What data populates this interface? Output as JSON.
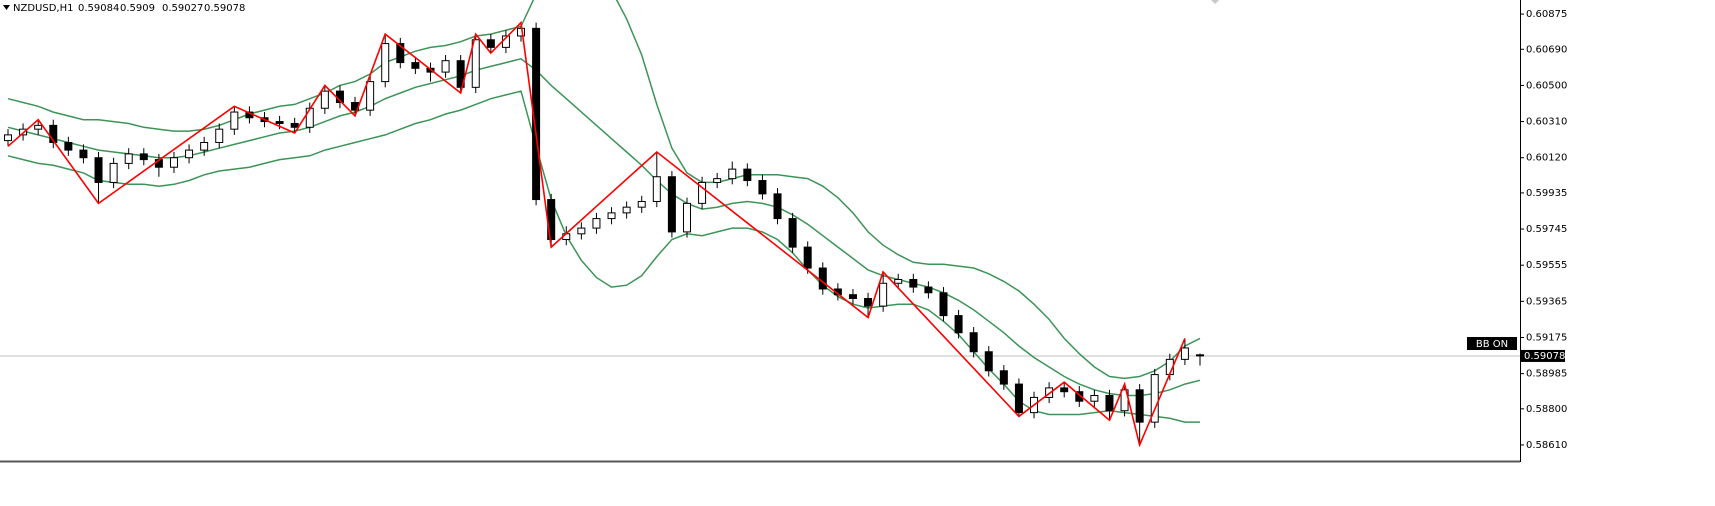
{
  "chart_data": {
    "type": "candlestick",
    "title": "NZDUSD,H1",
    "indicator_label": "BB ON",
    "ylim": [
      0.58531,
      0.60949
    ],
    "yticks": [
      0.60875,
      {
        "value": 0.6069,
        "label": "0.60690"
      },
      {
        "value": 0.605,
        "label": "0.60500"
      },
      {
        "value": 0.6031,
        "label": "0.60310"
      },
      {
        "value": 0.6012,
        "label": "0.60120"
      },
      0.59935,
      0.59745,
      0.59555,
      0.59365,
      0.59175,
      0.58985,
      {
        "value": 0.588,
        "label": "0.58800"
      },
      {
        "value": 0.5861,
        "label": "0.58610"
      }
    ],
    "up_color": "#ffffff",
    "down_color": "#000000",
    "open": [
      0.6021,
      0.6024,
      0.6027,
      0.6029,
      0.602,
      0.6016,
      0.6012,
      0.5999,
      0.6009,
      0.6014,
      0.6011,
      0.6007,
      0.6012,
      0.6016,
      0.602,
      0.6027,
      0.6036,
      0.6033,
      0.6031,
      0.603,
      0.6028,
      0.6038,
      0.6047,
      0.6041,
      0.6037,
      0.6052,
      0.6072,
      0.6062,
      0.6059,
      0.6057,
      0.6063,
      0.6049,
      0.6074,
      0.607,
      0.6076,
      0.608,
      0.599,
      0.5969,
      0.5972,
      0.5975,
      0.598,
      0.5983,
      0.5986,
      0.5989,
      0.6002,
      0.5973,
      0.5988,
      0.5999,
      0.6001,
      0.6006,
      0.6,
      0.5993,
      0.598,
      0.5965,
      0.5954,
      0.5943,
      0.594,
      0.5938,
      0.5934,
      0.5946,
      0.5948,
      0.5944,
      0.5941,
      0.5929,
      0.592,
      0.591,
      0.59,
      0.5893,
      0.5878,
      0.5886,
      0.5891,
      0.5889,
      0.5884,
      0.5887,
      0.5879,
      0.589,
      0.5873,
      0.5898,
      0.5906,
      0.59084
    ],
    "high": [
      0.6027,
      0.603,
      0.6032,
      0.6032,
      0.6023,
      0.6019,
      0.6015,
      0.6012,
      0.6017,
      0.6017,
      0.6014,
      0.6015,
      0.6019,
      0.6023,
      0.603,
      0.6039,
      0.6039,
      0.6036,
      0.6034,
      0.6033,
      0.6041,
      0.605,
      0.605,
      0.6044,
      0.6055,
      0.6077,
      0.6075,
      0.6065,
      0.6062,
      0.6066,
      0.6066,
      0.6077,
      0.6077,
      0.6079,
      0.6083,
      0.6083,
      0.5993,
      0.5976,
      0.5978,
      0.5983,
      0.5986,
      0.5989,
      0.5992,
      0.6015,
      0.6005,
      0.5991,
      0.6002,
      0.6004,
      0.601,
      0.6009,
      0.6003,
      0.5996,
      0.5983,
      0.5968,
      0.5957,
      0.5946,
      0.5943,
      0.5941,
      0.5952,
      0.5951,
      0.5951,
      0.5947,
      0.5944,
      0.5932,
      0.5923,
      0.5913,
      0.5903,
      0.5896,
      0.5889,
      0.5894,
      0.5894,
      0.5892,
      0.589,
      0.589,
      0.5893,
      0.5893,
      0.5901,
      0.5909,
      0.5917,
      0.5909
    ],
    "low": [
      0.6018,
      0.6021,
      0.6024,
      0.6017,
      0.6013,
      0.6009,
      0.5988,
      0.5996,
      0.6006,
      0.6008,
      0.6002,
      0.6004,
      0.6009,
      0.6013,
      0.6017,
      0.6024,
      0.603,
      0.6028,
      0.6027,
      0.6025,
      0.6025,
      0.6035,
      0.6038,
      0.6034,
      0.6034,
      0.6049,
      0.6059,
      0.6056,
      0.6052,
      0.6054,
      0.6046,
      0.6046,
      0.6067,
      0.6067,
      0.6073,
      0.5987,
      0.5965,
      0.5966,
      0.5969,
      0.5972,
      0.5977,
      0.598,
      0.5983,
      0.5986,
      0.597,
      0.597,
      0.5985,
      0.5996,
      0.5998,
      0.5997,
      0.599,
      0.5977,
      0.5962,
      0.5951,
      0.594,
      0.5937,
      0.5935,
      0.5928,
      0.5931,
      0.5943,
      0.5941,
      0.5938,
      0.5926,
      0.5917,
      0.5907,
      0.5897,
      0.589,
      0.5876,
      0.5875,
      0.5883,
      0.5886,
      0.5881,
      0.5881,
      0.5874,
      0.5876,
      0.5861,
      0.587,
      0.5895,
      0.5903,
      0.59027
    ],
    "close": [
      0.6024,
      0.6027,
      0.6029,
      0.602,
      0.6016,
      0.6012,
      0.5999,
      0.6009,
      0.6014,
      0.6011,
      0.6007,
      0.6012,
      0.6016,
      0.602,
      0.6027,
      0.6036,
      0.6033,
      0.6031,
      0.603,
      0.6028,
      0.6038,
      0.6047,
      0.6041,
      0.6037,
      0.6052,
      0.6072,
      0.6062,
      0.6059,
      0.6057,
      0.6063,
      0.6049,
      0.6074,
      0.607,
      0.6076,
      0.608,
      0.599,
      0.5969,
      0.5972,
      0.5975,
      0.598,
      0.5983,
      0.5986,
      0.5989,
      0.6002,
      0.5973,
      0.5988,
      0.5999,
      0.6001,
      0.6006,
      0.6,
      0.5993,
      0.598,
      0.5965,
      0.5954,
      0.5943,
      0.594,
      0.5938,
      0.5934,
      0.5946,
      0.5948,
      0.5944,
      0.5941,
      0.5929,
      0.592,
      0.591,
      0.59,
      0.5893,
      0.5878,
      0.5886,
      0.5891,
      0.5889,
      0.5884,
      0.5887,
      0.5879,
      0.589,
      0.5873,
      0.5898,
      0.5906,
      0.5912,
      0.59078
    ],
    "bands": [
      {
        "color": "#3d9458",
        "values": [
          0.6043,
          0.6041,
          0.6039,
          0.6036,
          0.6034,
          0.6032,
          0.6032,
          0.6031,
          0.603,
          0.6028,
          0.6027,
          0.6026,
          0.6026,
          0.6027,
          0.6029,
          0.6032,
          0.6035,
          0.6037,
          0.6039,
          0.604,
          0.6043,
          0.6046,
          0.605,
          0.6052,
          0.6056,
          0.6062,
          0.6065,
          0.6068,
          0.607,
          0.6071,
          0.6073,
          0.6076,
          0.6077,
          0.6079,
          0.6081,
          0.6098,
          0.611,
          0.6115,
          0.6114,
          0.6109,
          0.61,
          0.6085,
          0.6066,
          0.604,
          0.6017,
          0.6004,
          0.5999,
          0.5999,
          0.6001,
          0.6003,
          0.6003,
          0.6003,
          0.6002,
          0.6001,
          0.5997,
          0.5991,
          0.5983,
          0.5973,
          0.5966,
          0.5961,
          0.5957,
          0.5956,
          0.5956,
          0.5955,
          0.5954,
          0.5951,
          0.5947,
          0.5942,
          0.5935,
          0.5927,
          0.5917,
          0.5909,
          0.5902,
          0.5897,
          0.5896,
          0.5897,
          0.59,
          0.5905,
          0.5913,
          0.5917
        ]
      },
      {
        "color": "#3d9458",
        "values": [
          0.6028,
          0.6026,
          0.6024,
          0.6022,
          0.602,
          0.6018,
          0.6016,
          0.6015,
          0.6014,
          0.6013,
          0.6012,
          0.6012,
          0.6013,
          0.6015,
          0.6017,
          0.6019,
          0.6021,
          0.6023,
          0.6025,
          0.6026,
          0.6028,
          0.6031,
          0.6034,
          0.6036,
          0.6039,
          0.6043,
          0.6046,
          0.6049,
          0.6051,
          0.6053,
          0.6055,
          0.6058,
          0.606,
          0.6062,
          0.6064,
          0.6058,
          0.605,
          0.6043,
          0.6036,
          0.6029,
          0.6022,
          0.6015,
          0.6008,
          0.6,
          0.5993,
          0.5988,
          0.5985,
          0.5986,
          0.5988,
          0.5989,
          0.5988,
          0.5986,
          0.5982,
          0.5977,
          0.5971,
          0.5965,
          0.5959,
          0.5953,
          0.595,
          0.5948,
          0.5946,
          0.5944,
          0.5941,
          0.5937,
          0.5932,
          0.5926,
          0.592,
          0.5913,
          0.5907,
          0.5902,
          0.5897,
          0.5893,
          0.589,
          0.5888,
          0.5887,
          0.5887,
          0.5888,
          0.589,
          0.5893,
          0.5895
        ]
      },
      {
        "color": "#3d9458",
        "values": [
          0.6013,
          0.6011,
          0.6009,
          0.6008,
          0.6006,
          0.6004,
          0.6,
          0.5999,
          0.5998,
          0.5998,
          0.5997,
          0.5998,
          0.6,
          0.6003,
          0.6005,
          0.6006,
          0.6007,
          0.6009,
          0.6011,
          0.6012,
          0.6013,
          0.6016,
          0.6018,
          0.602,
          0.6022,
          0.6024,
          0.6027,
          0.603,
          0.6032,
          0.6035,
          0.6037,
          0.604,
          0.6043,
          0.6045,
          0.6047,
          0.6018,
          0.599,
          0.5971,
          0.5958,
          0.5949,
          0.5944,
          0.5945,
          0.595,
          0.596,
          0.5969,
          0.5972,
          0.5971,
          0.5973,
          0.5975,
          0.5975,
          0.5973,
          0.5969,
          0.5962,
          0.5953,
          0.5945,
          0.5939,
          0.5935,
          0.5933,
          0.5934,
          0.5935,
          0.5935,
          0.5932,
          0.5926,
          0.5919,
          0.591,
          0.5901,
          0.5893,
          0.5884,
          0.5879,
          0.5877,
          0.5877,
          0.5877,
          0.5878,
          0.5879,
          0.5878,
          0.5877,
          0.5876,
          0.5875,
          0.5873,
          0.5873
        ]
      }
    ],
    "zigzag": {
      "color": "#ff0000",
      "x": [
        0,
        2,
        6,
        15,
        19,
        21,
        23,
        25,
        30,
        31,
        32,
        34,
        36,
        43,
        57,
        58,
        67,
        70,
        73,
        74,
        75,
        78
      ],
      "values": [
        0.6018,
        0.6032,
        0.5988,
        0.6039,
        0.6025,
        0.605,
        0.6034,
        0.6077,
        0.6046,
        0.6077,
        0.6067,
        0.6083,
        0.5965,
        0.6015,
        0.5928,
        0.5952,
        0.5876,
        0.5894,
        0.5874,
        0.5893,
        0.5861,
        0.5917
      ]
    }
  }
}
